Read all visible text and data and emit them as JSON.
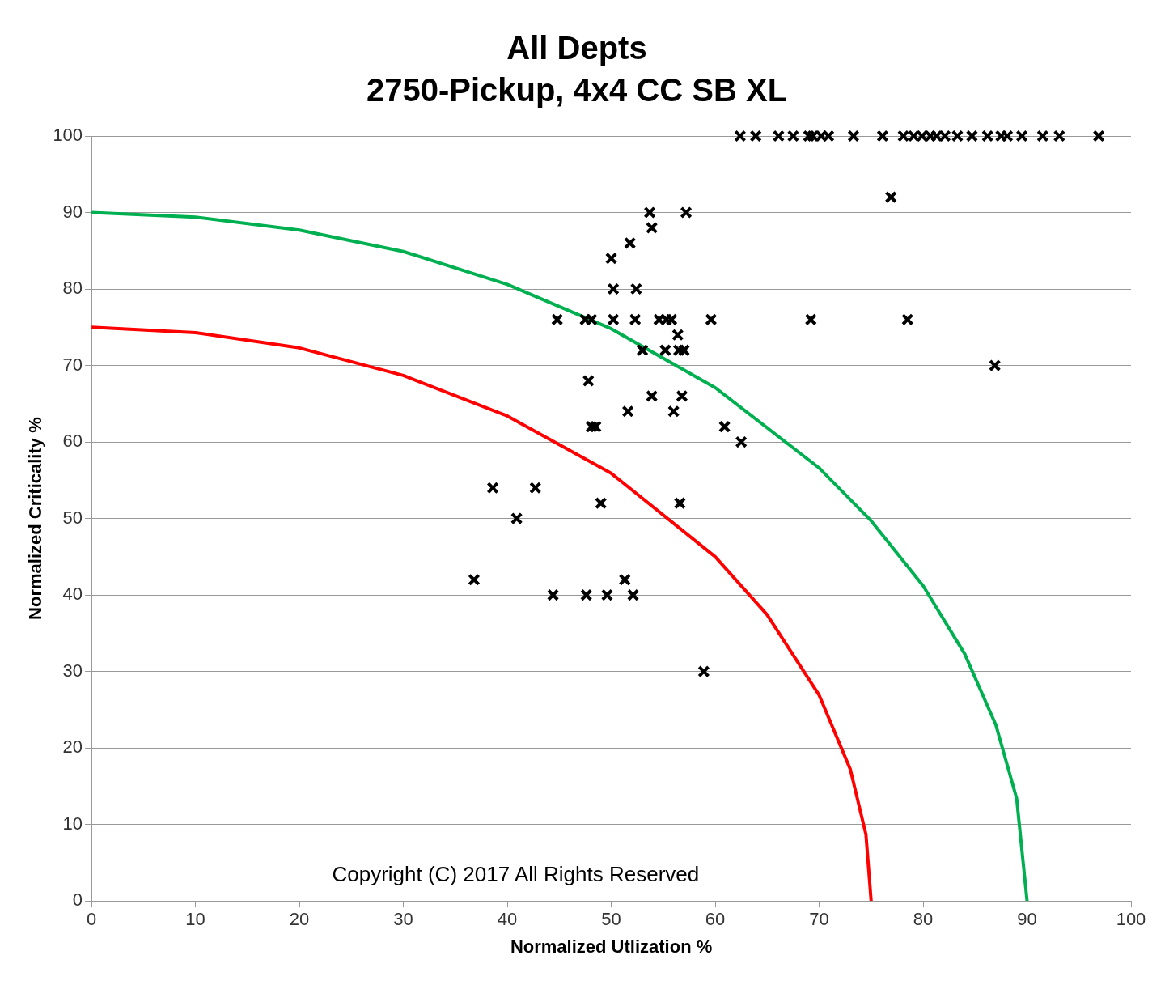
{
  "chart_data": {
    "type": "scatter",
    "title": "All Depts",
    "subtitle": "2750-Pickup, 4x4 CC SB XL",
    "xlabel": "Normalized Utlization %",
    "ylabel": "Normalized Criticality %",
    "xlim": [
      0,
      100
    ],
    "xticks": [
      0,
      10,
      20,
      30,
      40,
      50,
      60,
      70,
      80,
      90,
      100
    ],
    "ylim": [
      0,
      100
    ],
    "yticks": [
      0,
      10,
      20,
      30,
      40,
      50,
      60,
      70,
      80,
      90,
      100
    ],
    "grid": "y",
    "legend": false,
    "annotations": [
      "Copyright (C) 2017 All Rights Reserved"
    ],
    "series": [
      {
        "type": "scatter",
        "color": "#000000",
        "marker": "cross",
        "x": [
          62.4,
          63.9,
          66.1,
          67.5,
          69.0,
          69.4,
          70.2,
          70.9,
          73.3,
          76.1,
          78.1,
          79.1,
          79.9,
          80.7,
          81.3,
          82.1,
          83.3,
          84.7,
          86.2,
          87.5,
          88.1,
          89.5,
          91.5,
          93.1,
          96.9,
          76.9,
          53.7,
          57.2,
          53.9,
          51.8,
          50.0,
          50.2,
          52.4,
          44.8,
          47.5,
          48.1,
          50.2,
          52.3,
          54.6,
          55.3,
          55.8,
          59.6,
          69.2,
          78.5,
          56.4,
          53.0,
          55.2,
          56.5,
          57.0,
          86.9,
          47.8,
          53.9,
          56.8,
          51.6,
          56.0,
          48.1,
          48.5,
          60.9,
          62.5,
          38.6,
          42.7,
          40.9,
          49.0,
          56.6,
          36.8,
          51.3,
          44.4,
          47.6,
          49.6,
          52.1,
          58.9
        ],
        "values": [
          100,
          100,
          100,
          100,
          100,
          100,
          100,
          100,
          100,
          100,
          100,
          100,
          100,
          100,
          100,
          100,
          100,
          100,
          100,
          100,
          100,
          100,
          100,
          100,
          100,
          92,
          90,
          90,
          88,
          86,
          84,
          80,
          80,
          76,
          76,
          76,
          76,
          76,
          76,
          76,
          76,
          76,
          76,
          76,
          74,
          72,
          72,
          72,
          72,
          70,
          68,
          66,
          66,
          64,
          64,
          62,
          62,
          62,
          60,
          54,
          54,
          50,
          52,
          52,
          42,
          42,
          40,
          40,
          40,
          40,
          30
        ]
      },
      {
        "type": "line",
        "color": "#00b050",
        "marker": "none",
        "x": [
          0,
          10,
          20,
          30,
          40,
          50,
          60,
          70,
          75,
          80,
          84,
          87,
          89,
          90
        ],
        "values": [
          90,
          89.4,
          87.7,
          84.9,
          80.6,
          74.8,
          67.1,
          56.6,
          49.7,
          41.2,
          32.3,
          23.0,
          13.4,
          0
        ]
      },
      {
        "type": "line",
        "color": "#ff0000",
        "marker": "none",
        "x": [
          0,
          10,
          20,
          30,
          40,
          50,
          60,
          65,
          70,
          73,
          74.5,
          75
        ],
        "values": [
          75,
          74.3,
          72.3,
          68.7,
          63.4,
          55.9,
          45,
          37.4,
          26.9,
          17.2,
          8.7,
          0
        ]
      }
    ]
  }
}
